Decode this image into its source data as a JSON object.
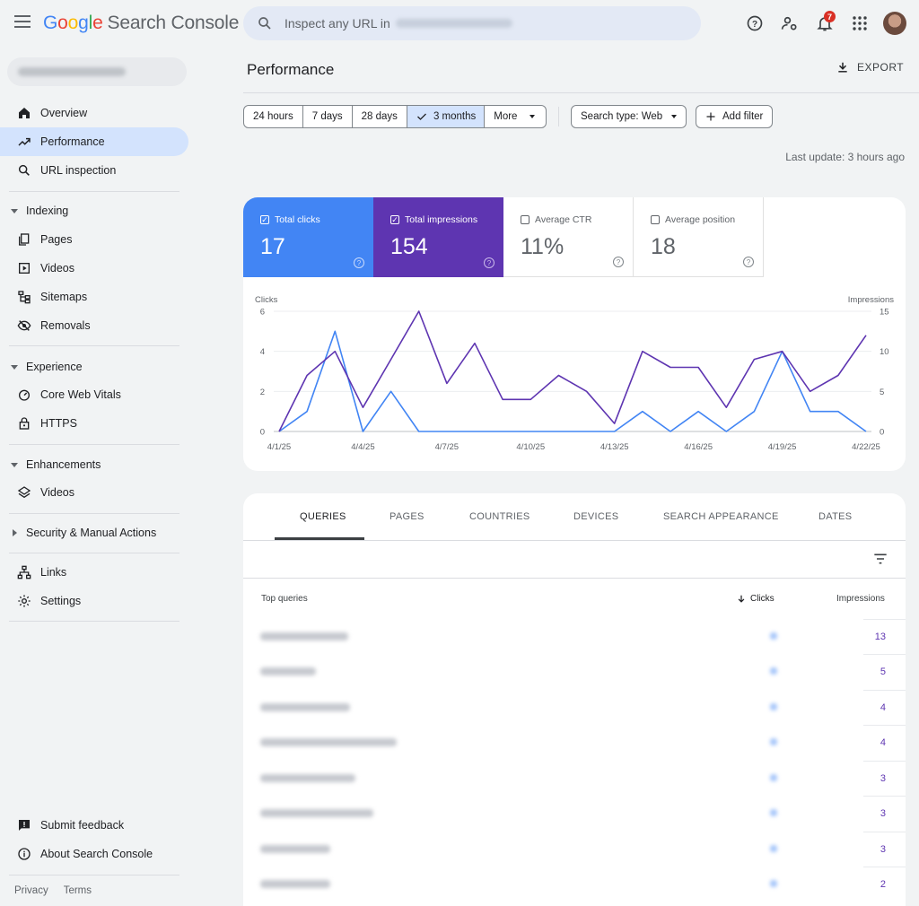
{
  "app": {
    "logo_letters": [
      "G",
      "o",
      "o",
      "g",
      "l",
      "e"
    ],
    "logo_rest": "Search Console",
    "search_placeholder": "Inspect any URL in",
    "notification_count": "7"
  },
  "sidebar": {
    "items": [
      {
        "label": "Overview",
        "icon": "home-icon"
      },
      {
        "label": "Performance",
        "icon": "trending-up-icon",
        "active": true
      },
      {
        "label": "URL inspection",
        "icon": "search-icon"
      }
    ],
    "indexing": {
      "title": "Indexing",
      "items": [
        {
          "label": "Pages",
          "icon": "pages-icon"
        },
        {
          "label": "Videos",
          "icon": "video-icon"
        },
        {
          "label": "Sitemaps",
          "icon": "sitemap-icon"
        },
        {
          "label": "Removals",
          "icon": "eye-off-icon"
        }
      ]
    },
    "experience": {
      "title": "Experience",
      "items": [
        {
          "label": "Core Web Vitals",
          "icon": "gauge-icon"
        },
        {
          "label": "HTTPS",
          "icon": "lock-icon"
        }
      ]
    },
    "enhancements": {
      "title": "Enhancements",
      "items": [
        {
          "label": "Videos",
          "icon": "layers-icon"
        }
      ]
    },
    "security": {
      "title": "Security & Manual Actions"
    },
    "links": {
      "label": "Links",
      "icon": "network-icon"
    },
    "settings": {
      "label": "Settings",
      "icon": "gear-icon"
    },
    "submit_feedback": {
      "label": "Submit feedback",
      "icon": "feedback-icon"
    },
    "about": {
      "label": "About Search Console",
      "icon": "info-icon"
    },
    "footer": {
      "privacy": "Privacy",
      "terms": "Terms"
    }
  },
  "main": {
    "title": "Performance",
    "export_label": "EXPORT",
    "date_ranges": [
      "24 hours",
      "7 days",
      "28 days",
      "3 months",
      "More"
    ],
    "selected_range": "3 months",
    "search_type": "Search type: Web",
    "add_filter": "Add filter",
    "last_update": "Last update: 3 hours ago"
  },
  "metrics": {
    "clicks": {
      "label": "Total clicks",
      "value": "17",
      "checked": true
    },
    "impressions": {
      "label": "Total impressions",
      "value": "154",
      "checked": true
    },
    "ctr": {
      "label": "Average CTR",
      "value": "11%",
      "checked": false
    },
    "position": {
      "label": "Average position",
      "value": "18",
      "checked": false
    }
  },
  "chart_data": {
    "type": "line",
    "left_axis_label": "Clicks",
    "right_axis_label": "Impressions",
    "left_ticks": [
      0,
      2,
      4,
      6
    ],
    "right_ticks": [
      0,
      5,
      10,
      15
    ],
    "ylim_left": [
      0,
      6
    ],
    "ylim_right": [
      0,
      15
    ],
    "x_tick_labels": [
      "4/1/25",
      "4/4/25",
      "4/7/25",
      "4/10/25",
      "4/13/25",
      "4/16/25",
      "4/19/25",
      "4/22/25"
    ],
    "x": [
      "4/1/25",
      "4/2/25",
      "4/3/25",
      "4/4/25",
      "4/5/25",
      "4/6/25",
      "4/7/25",
      "4/8/25",
      "4/9/25",
      "4/10/25",
      "4/11/25",
      "4/12/25",
      "4/13/25",
      "4/14/25",
      "4/15/25",
      "4/16/25",
      "4/17/25",
      "4/18/25",
      "4/19/25",
      "4/20/25",
      "4/21/25",
      "4/22/25"
    ],
    "series": [
      {
        "name": "Clicks",
        "axis": "left",
        "color": "#4285f4",
        "values": [
          0,
          1,
          5,
          0,
          2,
          0,
          0,
          0,
          0,
          0,
          0,
          0,
          0,
          1,
          0,
          1,
          0,
          1,
          4,
          1,
          1,
          0
        ]
      },
      {
        "name": "Impressions",
        "axis": "right",
        "color": "#5e35b1",
        "values": [
          0,
          7,
          10,
          3,
          9,
          15,
          6,
          11,
          4,
          4,
          7,
          5,
          1,
          10,
          8,
          8,
          3,
          9,
          10,
          5,
          7,
          12
        ]
      }
    ]
  },
  "table": {
    "tabs": [
      "QUERIES",
      "PAGES",
      "COUNTRIES",
      "DEVICES",
      "SEARCH APPEARANCE",
      "DATES"
    ],
    "active_tab": "QUERIES",
    "col_query": "Top queries",
    "col_clicks": "Clicks",
    "col_impressions": "Impressions",
    "rows": [
      {
        "impressions": "13"
      },
      {
        "impressions": "5"
      },
      {
        "impressions": "4"
      },
      {
        "impressions": "4"
      },
      {
        "impressions": "3"
      },
      {
        "impressions": "3"
      },
      {
        "impressions": "3"
      },
      {
        "impressions": "2"
      }
    ]
  },
  "colors": {
    "clicks": "#4285f4",
    "impressions": "#5e35b1",
    "active_nav": "#d3e3fd"
  }
}
